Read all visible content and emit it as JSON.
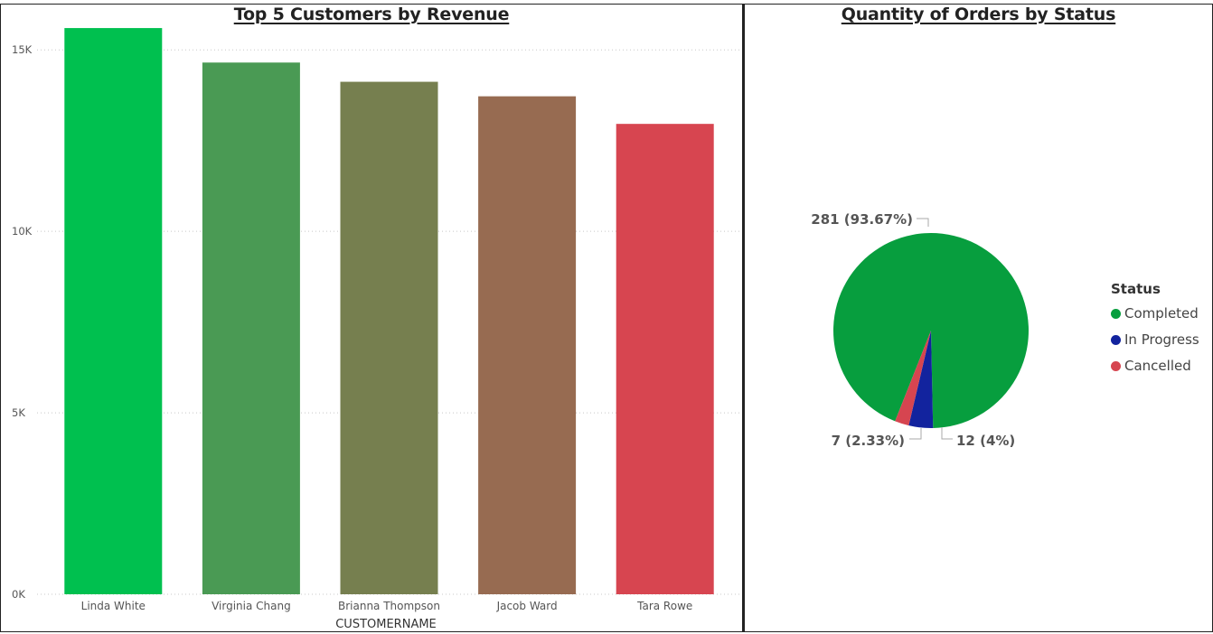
{
  "chart_data": [
    {
      "type": "bar",
      "title": "Top 5 Customers by Revenue",
      "xlabel": "CUSTOMERNAME",
      "ylabel": "",
      "categories": [
        "Linda White",
        "Virginia Chang",
        "Brianna Thompson",
        "Jacob Ward",
        "Tara Rowe"
      ],
      "values": [
        15600,
        14650,
        14120,
        13720,
        12960
      ],
      "colors": [
        "#00c04f",
        "#4a9a54",
        "#767f4f",
        "#976b51",
        "#d74550"
      ],
      "yticks": [
        "0K",
        "5K",
        "10K",
        "15K"
      ],
      "ylim": [
        0,
        16000
      ],
      "grid": true
    },
    {
      "type": "pie",
      "title": "Quantity of Orders by Status",
      "legend_title": "Status",
      "legend_position": "right",
      "labels": [
        "Completed",
        "In Progress",
        "Cancelled"
      ],
      "values": [
        281,
        12,
        7
      ],
      "data_labels": [
        "281 (93.67%)",
        "12 (4%)",
        "7 (2.33%)"
      ],
      "colors": [
        "#079e3e",
        "#12239e",
        "#d64550"
      ]
    }
  ]
}
